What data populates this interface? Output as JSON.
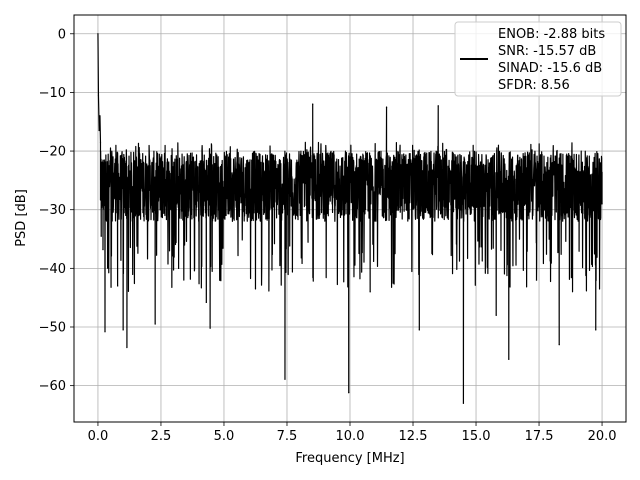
{
  "chart_data": {
    "type": "line",
    "xlabel": "Frequency [MHz]",
    "ylabel": "PSD [dB]",
    "xlim": [
      -0.95,
      20.95
    ],
    "ylim": [
      -66.2,
      3.2
    ],
    "xticks": [
      0.0,
      2.5,
      5.0,
      7.5,
      10.0,
      12.5,
      15.0,
      17.5,
      20.0
    ],
    "xtick_labels": [
      "0.0",
      "2.5",
      "5.0",
      "7.5",
      "10.0",
      "12.5",
      "15.0",
      "17.5",
      "20.0"
    ],
    "yticks": [
      0,
      -10,
      -20,
      -30,
      -40,
      -50,
      -60
    ],
    "ytick_labels": [
      "0",
      "−10",
      "−20",
      "−30",
      "−40",
      "−50",
      "−60"
    ],
    "grid": true,
    "legend_position": "top-right",
    "legend_entries": [
      "ENOB: -2.88 bits",
      "SNR: -15.57 dB",
      "SINAD: -15.6 dB",
      "SFDR: 8.56"
    ],
    "series": [
      {
        "color": "#000000",
        "band_upper": -20.0,
        "band_lower": -32.0,
        "points": [
          [
            0.0,
            0.0
          ],
          [
            0.02,
            -10.5
          ],
          [
            0.05,
            -16.5
          ],
          [
            0.08,
            -14.0
          ],
          [
            0.1,
            -18.5
          ],
          [
            0.13,
            -34.5
          ],
          [
            0.16,
            -25.0
          ],
          [
            0.2,
            -36.8
          ],
          [
            0.24,
            -22.0
          ],
          [
            0.28,
            -50.8
          ],
          [
            0.35,
            -28.0
          ],
          [
            0.52,
            -43.2
          ],
          [
            0.78,
            -43.0
          ],
          [
            1.0,
            -50.5
          ],
          [
            1.15,
            -53.5
          ],
          [
            2.27,
            -49.5
          ],
          [
            3.2,
            -40.0
          ],
          [
            4.3,
            -45.8
          ],
          [
            4.45,
            -50.2
          ],
          [
            6.25,
            -43.5
          ],
          [
            7.42,
            -58.9
          ],
          [
            8.52,
            -12.0
          ],
          [
            9.95,
            -61.2
          ],
          [
            10.8,
            -44.0
          ],
          [
            11.45,
            -12.5
          ],
          [
            12.75,
            -50.5
          ],
          [
            13.5,
            -12.3
          ],
          [
            14.5,
            -63.0
          ],
          [
            15.8,
            -48.0
          ],
          [
            16.3,
            -55.5
          ],
          [
            17.4,
            -42.0
          ],
          [
            18.3,
            -53.0
          ],
          [
            19.75,
            -50.5
          ],
          [
            20.0,
            -29.0
          ]
        ]
      }
    ]
  }
}
